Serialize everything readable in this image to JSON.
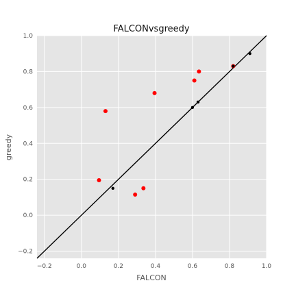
{
  "chart_data": {
    "type": "scatter",
    "title": "FALCONvsgreedy",
    "xlabel": "FALCON",
    "ylabel": "greedy",
    "xlim": [
      -0.24,
      1.0
    ],
    "ylim": [
      -0.24,
      1.0
    ],
    "xticks": [
      -0.2,
      0.0,
      0.2,
      0.4,
      0.6,
      0.8,
      1.0
    ],
    "yticks": [
      -0.2,
      0.0,
      0.2,
      0.4,
      0.6,
      0.8,
      1.0
    ],
    "xtick_labels": [
      "−0.2",
      "0.0",
      "0.2",
      "0.4",
      "0.6",
      "0.8",
      "1.0"
    ],
    "ytick_labels": [
      "−0.2",
      "0.0",
      "0.2",
      "0.4",
      "0.6",
      "0.8",
      "1.0"
    ],
    "grid": true,
    "background": "#e5e5e5",
    "grid_color": "#ffffff",
    "reference_line": {
      "slope": 1,
      "intercept": 0,
      "color": "#000000"
    },
    "series": [
      {
        "color": "#ff0000",
        "points": [
          {
            "x": 0.13,
            "y": 0.58
          },
          {
            "x": 0.095,
            "y": 0.195
          },
          {
            "x": 0.29,
            "y": 0.115
          },
          {
            "x": 0.335,
            "y": 0.15
          },
          {
            "x": 0.395,
            "y": 0.68
          },
          {
            "x": 0.61,
            "y": 0.75
          },
          {
            "x": 0.635,
            "y": 0.8
          },
          {
            "x": 0.82,
            "y": 0.83
          }
        ]
      },
      {
        "color": "#000000",
        "points": [
          {
            "x": 0.17,
            "y": 0.15
          },
          {
            "x": 0.6,
            "y": 0.6
          },
          {
            "x": 0.63,
            "y": 0.63
          },
          {
            "x": 0.82,
            "y": 0.83
          },
          {
            "x": 0.91,
            "y": 0.9
          }
        ]
      }
    ]
  }
}
